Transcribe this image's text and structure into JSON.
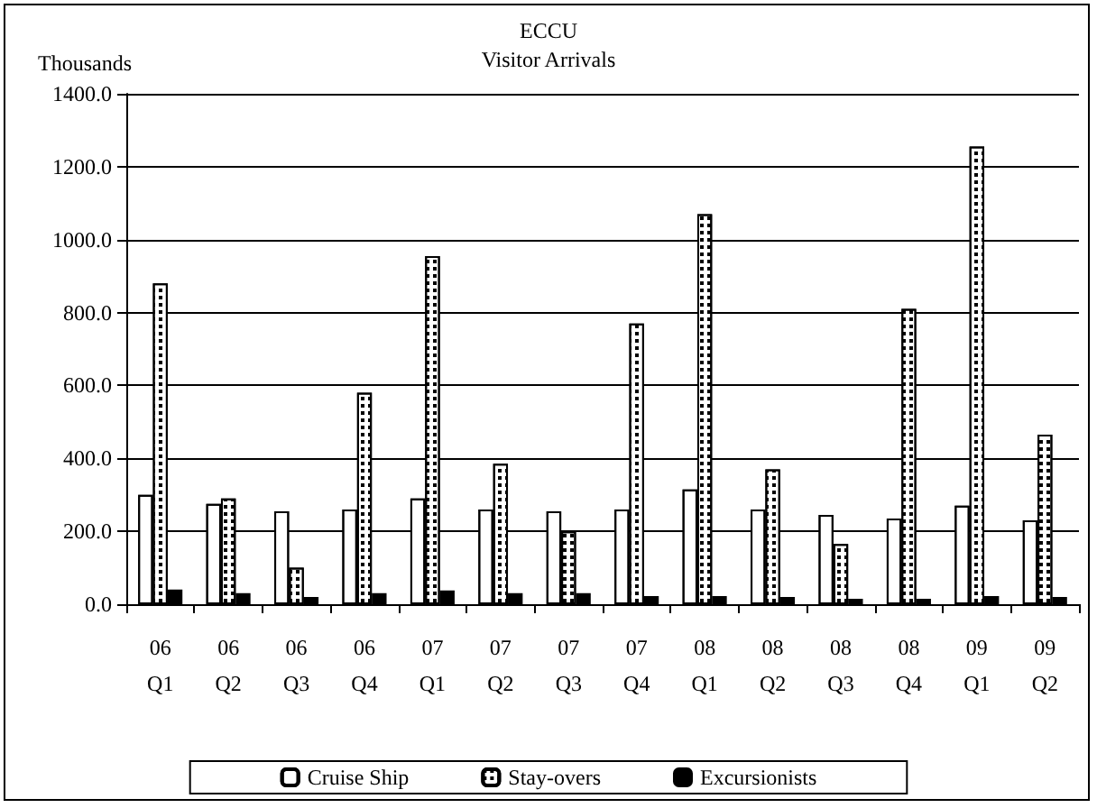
{
  "chart_data": {
    "type": "bar",
    "title": "ECCU",
    "subtitle": "Visitor Arrivals",
    "ylabel": "Thousands",
    "categories": [
      "06\nQ1",
      "06\nQ2",
      "06\nQ3",
      "06\nQ4",
      "07\nQ1",
      "07\nQ2",
      "07\nQ3",
      "07\nQ4",
      "08\nQ1",
      "08\nQ2",
      "08\nQ3",
      "08\nQ4",
      "09\nQ1",
      "09\nQ2"
    ],
    "series": [
      {
        "name": "Cruise Ship",
        "color": "#ffffff",
        "values": [
          300,
          275,
          255,
          260,
          290,
          260,
          255,
          260,
          315,
          260,
          245,
          235,
          270,
          230
        ]
      },
      {
        "name": "Stay-overs",
        "color": "#ffffff",
        "values": [
          880,
          290,
          100,
          580,
          955,
          385,
          200,
          770,
          1070,
          370,
          165,
          810,
          1255,
          465
        ]
      },
      {
        "name": "Excursionists",
        "color": "#000000",
        "values": [
          40,
          30,
          20,
          30,
          38,
          30,
          30,
          22,
          22,
          20,
          15,
          15,
          22,
          20
        ]
      }
    ],
    "ylim": [
      0,
      1400
    ],
    "yticks": [
      {
        "value": 0,
        "label": "0.0"
      },
      {
        "value": 200,
        "label": "200.0"
      },
      {
        "value": 400,
        "label": "400.0"
      },
      {
        "value": 600,
        "label": "600.0"
      },
      {
        "value": 800,
        "label": "800.0"
      },
      {
        "value": 1000,
        "label": "1000.0"
      },
      {
        "value": 1200,
        "label": "1200.0"
      },
      {
        "value": 1400,
        "label": "1400.0"
      }
    ],
    "grid": "y",
    "legend": "bottom"
  }
}
